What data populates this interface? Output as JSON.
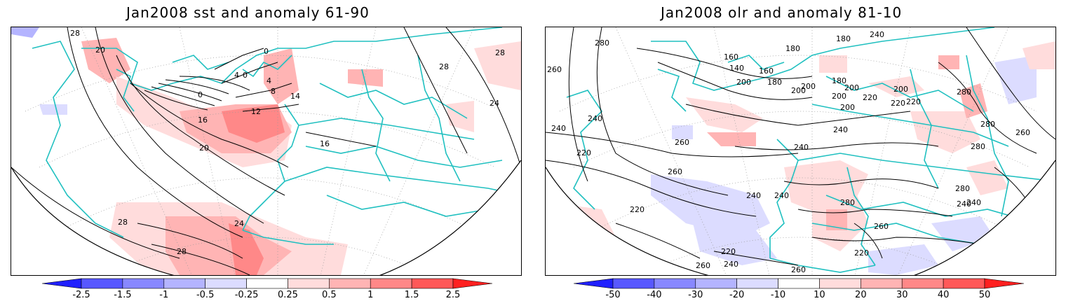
{
  "left": {
    "title": "Jan2008 sst and anomaly 61-90",
    "contour_labels": [
      "28",
      "20",
      "0",
      "4",
      "0",
      "4",
      "8",
      "14",
      "0",
      "12",
      "16",
      "20",
      "16",
      "24",
      "28",
      "28",
      "24",
      "28",
      "28"
    ],
    "colorbar": {
      "labels": [
        "-2.5",
        "-1.5",
        "-1",
        "-0.5",
        "-0.25",
        "0.25",
        "0.5",
        "1",
        "1.5",
        "2.5"
      ],
      "colors": [
        "#2020ff",
        "#5858ff",
        "#8888ff",
        "#b4b4ff",
        "#dcdcff",
        "#ffffff",
        "#ffdcdc",
        "#ffb4b4",
        "#ff8888",
        "#ff5858",
        "#ff2020"
      ]
    }
  },
  "right": {
    "title": "Jan2008 olr and anomaly 81-10",
    "contour_labels": [
      "260",
      "280",
      "160",
      "180",
      "180",
      "240",
      "140",
      "160",
      "200",
      "180",
      "200",
      "200",
      "180",
      "200",
      "220",
      "200",
      "200",
      "200",
      "220",
      "220",
      "280",
      "240",
      "220",
      "240",
      "260",
      "240",
      "240",
      "280",
      "260",
      "280",
      "260",
      "240",
      "280",
      "280",
      "240",
      "260",
      "220",
      "220",
      "240",
      "260",
      "260",
      "240",
      "220",
      "240"
    ],
    "colorbar": {
      "labels": [
        "-50",
        "-40",
        "-30",
        "-20",
        "-10",
        "10",
        "20",
        "30",
        "40",
        "50"
      ],
      "colors": [
        "#2020ff",
        "#5858ff",
        "#8888ff",
        "#b4b4ff",
        "#dcdcff",
        "#ffffff",
        "#ffdcdc",
        "#ffb4b4",
        "#ff8888",
        "#ff5858",
        "#ff2020"
      ]
    }
  },
  "colors": {
    "coast": "#20c0c0",
    "contour": "#000000",
    "grid": "#999999"
  }
}
